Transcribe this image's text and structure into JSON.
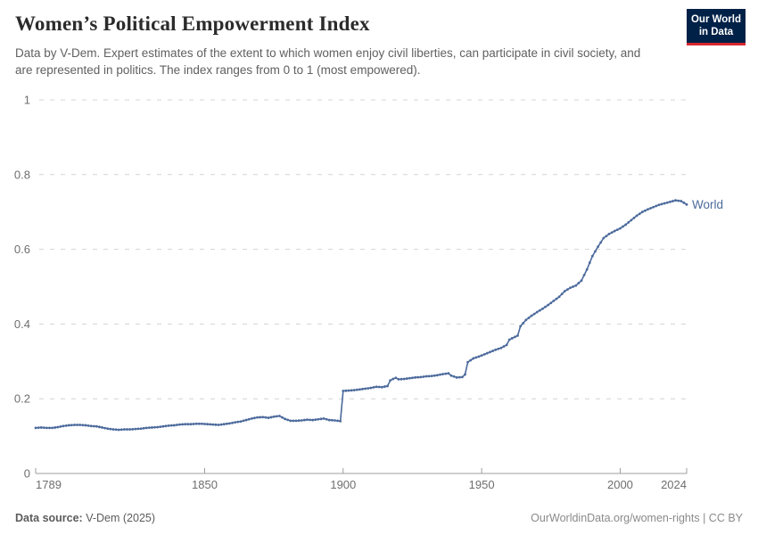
{
  "header": {
    "title": "Women’s Political Empowerment Index",
    "subtitle": "Data by V-Dem. Expert estimates of the extent to which women enjoy civil liberties, can participate in civil society, and are represented in politics. The index ranges from 0 to 1 (most empowered).",
    "logo": {
      "line1": "Our World",
      "line2": "in Data"
    }
  },
  "footer": {
    "source_label": "Data source:",
    "source_value": " V-Dem (2025)",
    "right_text": "OurWorldinData.org/women-rights | CC BY"
  },
  "colors": {
    "series_blue": "#4c6a9c",
    "logo_bg": "#002147",
    "logo_accent": "#d7282f",
    "grid": "#d4d4d4",
    "axis": "#9e9e9e",
    "tick_label": "#6e6e6e"
  },
  "chart_data": {
    "type": "line",
    "title": "Women's Political Empowerment Index",
    "xlabel": "",
    "ylabel": "",
    "xlim": [
      1789,
      2024
    ],
    "ylim": [
      0,
      1
    ],
    "x_ticks": [
      1789,
      1850,
      1900,
      1950,
      2000,
      2024
    ],
    "y_ticks": [
      0,
      0.2,
      0.4,
      0.6,
      0.8,
      1
    ],
    "grid": "horizontal-dashed",
    "legend": "end-of-line-label",
    "series": [
      {
        "name": "World",
        "color": "#4c6a9c",
        "points": [
          [
            1789,
            0.122
          ],
          [
            1791,
            0.123
          ],
          [
            1793,
            0.122
          ],
          [
            1795,
            0.122
          ],
          [
            1797,
            0.124
          ],
          [
            1799,
            0.127
          ],
          [
            1801,
            0.129
          ],
          [
            1803,
            0.13
          ],
          [
            1805,
            0.13
          ],
          [
            1807,
            0.129
          ],
          [
            1809,
            0.127
          ],
          [
            1811,
            0.126
          ],
          [
            1813,
            0.123
          ],
          [
            1815,
            0.12
          ],
          [
            1817,
            0.118
          ],
          [
            1819,
            0.117
          ],
          [
            1821,
            0.118
          ],
          [
            1823,
            0.118
          ],
          [
            1825,
            0.119
          ],
          [
            1827,
            0.12
          ],
          [
            1829,
            0.122
          ],
          [
            1831,
            0.123
          ],
          [
            1833,
            0.124
          ],
          [
            1835,
            0.126
          ],
          [
            1837,
            0.128
          ],
          [
            1839,
            0.129
          ],
          [
            1841,
            0.131
          ],
          [
            1843,
            0.132
          ],
          [
            1845,
            0.132
          ],
          [
            1847,
            0.133
          ],
          [
            1849,
            0.133
          ],
          [
            1851,
            0.132
          ],
          [
            1853,
            0.131
          ],
          [
            1855,
            0.13
          ],
          [
            1857,
            0.132
          ],
          [
            1859,
            0.134
          ],
          [
            1861,
            0.137
          ],
          [
            1863,
            0.139
          ],
          [
            1865,
            0.143
          ],
          [
            1867,
            0.147
          ],
          [
            1869,
            0.15
          ],
          [
            1871,
            0.151
          ],
          [
            1873,
            0.149
          ],
          [
            1875,
            0.152
          ],
          [
            1877,
            0.154
          ],
          [
            1879,
            0.146
          ],
          [
            1881,
            0.141
          ],
          [
            1883,
            0.141
          ],
          [
            1885,
            0.142
          ],
          [
            1887,
            0.144
          ],
          [
            1889,
            0.143
          ],
          [
            1891,
            0.145
          ],
          [
            1893,
            0.147
          ],
          [
            1895,
            0.143
          ],
          [
            1897,
            0.142
          ],
          [
            1899,
            0.14
          ],
          [
            1900,
            0.221
          ],
          [
            1902,
            0.222
          ],
          [
            1904,
            0.223
          ],
          [
            1906,
            0.225
          ],
          [
            1908,
            0.227
          ],
          [
            1910,
            0.229
          ],
          [
            1912,
            0.232
          ],
          [
            1914,
            0.231
          ],
          [
            1916,
            0.234
          ],
          [
            1917,
            0.249
          ],
          [
            1918,
            0.253
          ],
          [
            1919,
            0.256
          ],
          [
            1920,
            0.252
          ],
          [
            1922,
            0.253
          ],
          [
            1924,
            0.255
          ],
          [
            1926,
            0.257
          ],
          [
            1928,
            0.258
          ],
          [
            1930,
            0.26
          ],
          [
            1932,
            0.261
          ],
          [
            1934,
            0.263
          ],
          [
            1936,
            0.266
          ],
          [
            1938,
            0.268
          ],
          [
            1939,
            0.262
          ],
          [
            1941,
            0.257
          ],
          [
            1943,
            0.258
          ],
          [
            1944,
            0.265
          ],
          [
            1945,
            0.298
          ],
          [
            1947,
            0.308
          ],
          [
            1949,
            0.313
          ],
          [
            1951,
            0.319
          ],
          [
            1953,
            0.325
          ],
          [
            1955,
            0.331
          ],
          [
            1957,
            0.336
          ],
          [
            1959,
            0.344
          ],
          [
            1960,
            0.358
          ],
          [
            1961,
            0.362
          ],
          [
            1963,
            0.369
          ],
          [
            1964,
            0.394
          ],
          [
            1966,
            0.411
          ],
          [
            1968,
            0.422
          ],
          [
            1970,
            0.432
          ],
          [
            1972,
            0.441
          ],
          [
            1974,
            0.451
          ],
          [
            1976,
            0.462
          ],
          [
            1978,
            0.473
          ],
          [
            1980,
            0.488
          ],
          [
            1982,
            0.497
          ],
          [
            1984,
            0.503
          ],
          [
            1986,
            0.516
          ],
          [
            1988,
            0.546
          ],
          [
            1990,
            0.582
          ],
          [
            1992,
            0.607
          ],
          [
            1994,
            0.63
          ],
          [
            1996,
            0.641
          ],
          [
            1998,
            0.649
          ],
          [
            2000,
            0.656
          ],
          [
            2002,
            0.666
          ],
          [
            2004,
            0.678
          ],
          [
            2006,
            0.69
          ],
          [
            2008,
            0.7
          ],
          [
            2010,
            0.707
          ],
          [
            2012,
            0.713
          ],
          [
            2014,
            0.719
          ],
          [
            2016,
            0.723
          ],
          [
            2018,
            0.727
          ],
          [
            2020,
            0.731
          ],
          [
            2022,
            0.729
          ],
          [
            2024,
            0.72
          ]
        ]
      }
    ]
  }
}
